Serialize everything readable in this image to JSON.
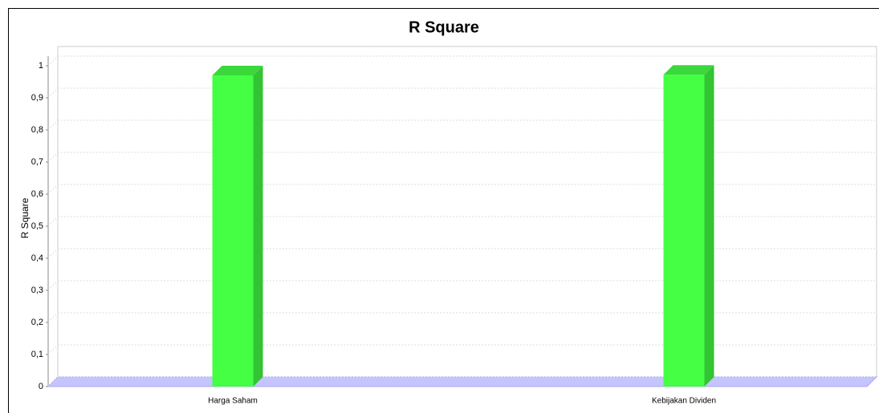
{
  "chart_data": {
    "type": "bar3d",
    "title": "R Square",
    "y_label": "R Square",
    "categories": [
      "Harga Saham",
      "Kebijakan Dividen"
    ],
    "values": [
      0.97,
      0.972
    ],
    "color": "#44ff44",
    "ylim": [
      0,
      1.03
    ],
    "yticks": [
      0,
      {
        "value": 0.1,
        "label": "0,1"
      },
      {
        "value": 0.2,
        "label": "0,2"
      },
      {
        "value": 0.3,
        "label": "0,3"
      },
      {
        "value": 0.4,
        "label": "0,4"
      },
      {
        "value": 0.5,
        "label": "0,5"
      },
      {
        "value": 0.6,
        "label": "0,6"
      },
      {
        "value": 0.7,
        "label": "0,7"
      },
      {
        "value": 0.8,
        "label": "0,8"
      },
      {
        "value": 0.9,
        "label": "0,9"
      },
      1
    ],
    "grid": true
  }
}
